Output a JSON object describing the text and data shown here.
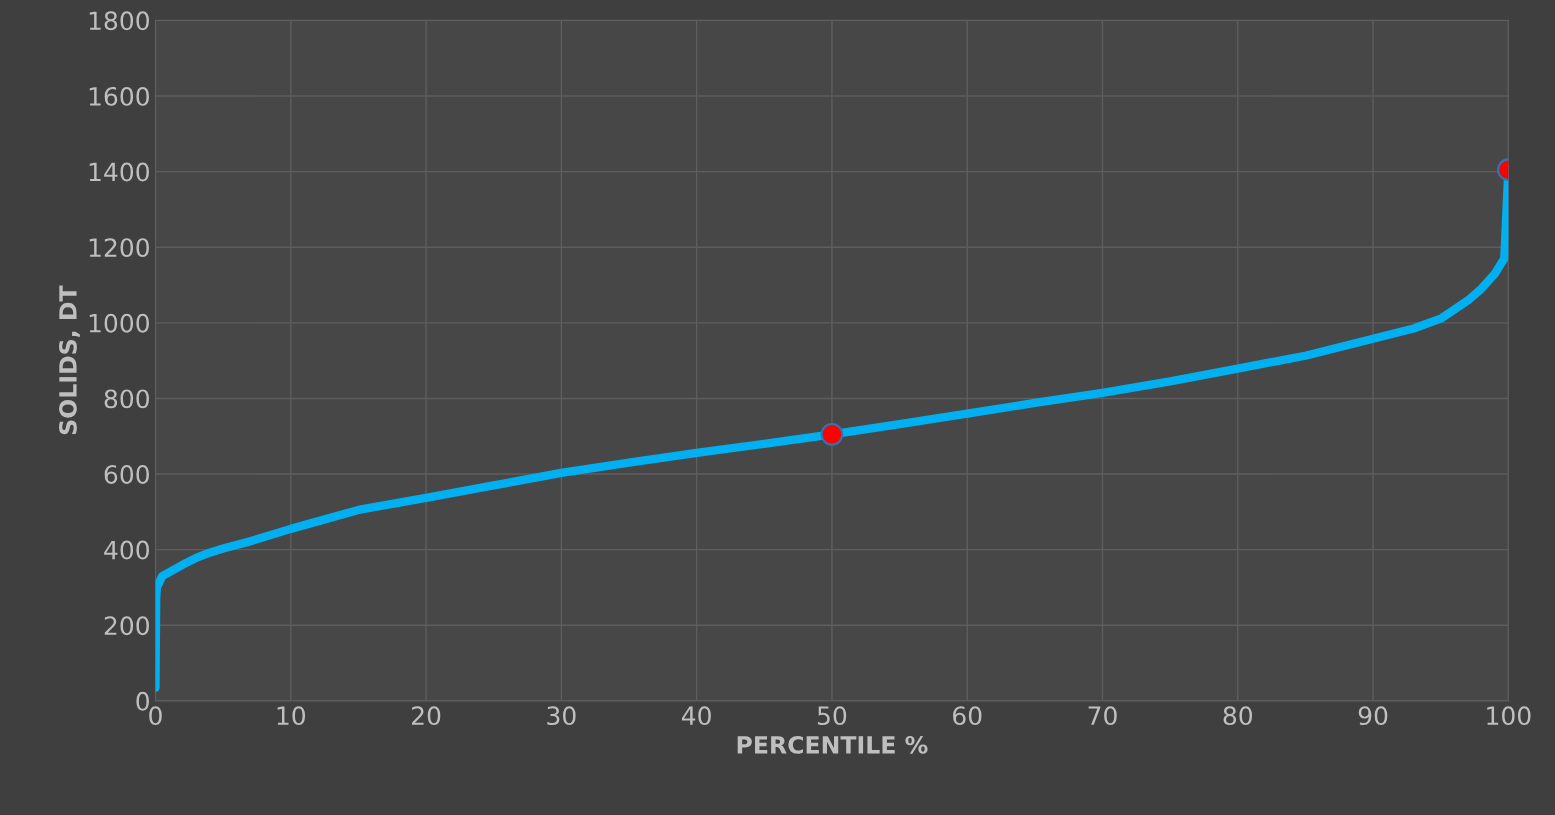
{
  "chart_data": {
    "type": "line",
    "xlabel": "PERCENTILE %",
    "ylabel": "SOLIDS, DT",
    "xlim": [
      0,
      100
    ],
    "ylim": [
      0,
      1800
    ],
    "xticks": [
      0,
      10,
      20,
      30,
      40,
      50,
      60,
      70,
      80,
      90,
      100
    ],
    "yticks": [
      0,
      200,
      400,
      600,
      800,
      1000,
      1200,
      1400,
      1600,
      1800
    ],
    "grid": true,
    "legend": false,
    "series": [
      {
        "color": "#00b0f0",
        "marker": "none",
        "x": [
          0,
          0.05,
          0.1,
          0.5,
          1,
          2,
          3,
          4,
          5,
          7,
          10,
          15,
          20,
          25,
          30,
          35,
          40,
          45,
          50,
          55,
          60,
          65,
          70,
          75,
          80,
          85,
          90,
          93,
          95,
          97,
          98,
          99,
          99.7,
          100
        ],
        "values": [
          35,
          270,
          300,
          330,
          340,
          360,
          378,
          392,
          403,
          422,
          455,
          505,
          537,
          570,
          603,
          630,
          656,
          680,
          705,
          732,
          760,
          788,
          815,
          845,
          879,
          913,
          958,
          985,
          1011,
          1059,
          1090,
          1130,
          1170,
          1405
        ]
      },
      {
        "type": "scatter",
        "color": "#ff0000",
        "marker": "circle",
        "x": [
          50,
          100
        ],
        "values": [
          705,
          1405
        ]
      }
    ]
  }
}
